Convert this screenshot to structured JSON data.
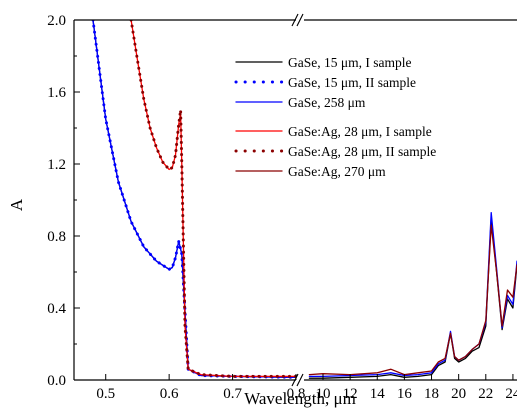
{
  "chart_data": {
    "type": "line",
    "title": "",
    "xlabel": "Wavelength, μm",
    "ylabel": "A",
    "ylim": [
      0,
      2.0
    ],
    "grid": false,
    "legend_position": "upper-right",
    "broken_x_axis": true,
    "panels": [
      {
        "xlim": [
          0.45,
          0.8
        ],
        "xticks": [
          0.5,
          0.6,
          0.7,
          0.8
        ]
      },
      {
        "xlim": [
          8.6,
          24.3
        ],
        "xticks": [
          10,
          12,
          14,
          16,
          18,
          20,
          22,
          24
        ]
      }
    ],
    "yticks": [
      "0.0",
      "0.4",
      "0.8",
      "1.2",
      "1.6",
      "2.0"
    ],
    "xtick_labels": [
      "0.5",
      "0.6",
      "0.7",
      "0.8",
      "10",
      "12",
      "14",
      "16",
      "18",
      "20",
      "22",
      "24"
    ],
    "series": [
      {
        "name": "GaSe, 15 μm, I sample",
        "color": "#000000",
        "style": "solid",
        "x": [
          0.48,
          0.5,
          0.52,
          0.54,
          0.56,
          0.58,
          0.6,
          0.605,
          0.61,
          0.615,
          0.62,
          0.63,
          0.65,
          0.7,
          0.8,
          9,
          10,
          12,
          14,
          15,
          16,
          17,
          18,
          18.5,
          19,
          19.4,
          19.7,
          20,
          20.5,
          21,
          21.5,
          22,
          22.4,
          22.8,
          23.2,
          23.6,
          24,
          24.3
        ],
        "y": [
          2.0,
          1.45,
          1.1,
          0.88,
          0.74,
          0.66,
          0.615,
          0.625,
          0.68,
          0.77,
          0.7,
          0.06,
          0.025,
          0.02,
          0.015,
          0.01,
          0.01,
          0.015,
          0.02,
          0.03,
          0.015,
          0.02,
          0.03,
          0.08,
          0.1,
          0.26,
          0.12,
          0.1,
          0.12,
          0.16,
          0.18,
          0.3,
          0.9,
          0.6,
          0.28,
          0.45,
          0.4,
          0.64
        ]
      },
      {
        "name": "GaSe, 15 μm, II sample",
        "color": "#0000ff",
        "style": "dotted",
        "x": [
          0.48,
          0.5,
          0.52,
          0.54,
          0.56,
          0.58,
          0.6,
          0.605,
          0.61,
          0.615,
          0.62,
          0.63,
          0.65,
          0.7,
          0.8
        ],
        "y": [
          2.0,
          1.45,
          1.1,
          0.88,
          0.74,
          0.66,
          0.615,
          0.625,
          0.68,
          0.77,
          0.7,
          0.06,
          0.025,
          0.02,
          0.015
        ]
      },
      {
        "name": "GaSe, 258 μm",
        "color": "#0000ff",
        "style": "solid",
        "x": [
          0.48,
          0.5,
          0.52,
          0.54,
          0.56,
          0.58,
          0.6,
          0.605,
          0.61,
          0.615,
          0.62,
          0.63,
          0.65,
          0.7,
          0.8,
          9,
          10,
          12,
          14,
          15,
          16,
          17,
          18,
          18.5,
          19,
          19.4,
          19.7,
          20,
          20.5,
          21,
          21.5,
          22,
          22.4,
          22.8,
          23.2,
          23.6,
          24,
          24.3
        ],
        "y": [
          2.0,
          1.45,
          1.1,
          0.88,
          0.74,
          0.66,
          0.615,
          0.625,
          0.68,
          0.77,
          0.7,
          0.06,
          0.025,
          0.02,
          0.015,
          0.02,
          0.02,
          0.025,
          0.03,
          0.04,
          0.025,
          0.03,
          0.04,
          0.09,
          0.11,
          0.27,
          0.13,
          0.11,
          0.13,
          0.17,
          0.2,
          0.32,
          0.93,
          0.62,
          0.29,
          0.47,
          0.42,
          0.66
        ]
      },
      {
        "name": "GaSe:Ag, 28 μm, I sample",
        "color": "#ff0000",
        "style": "solid",
        "x": [
          0.54,
          0.55,
          0.56,
          0.57,
          0.58,
          0.59,
          0.6,
          0.605,
          0.61,
          0.615,
          0.618,
          0.62,
          0.625,
          0.63,
          0.65,
          0.7,
          0.8
        ],
        "y": [
          2.0,
          1.78,
          1.56,
          1.4,
          1.29,
          1.21,
          1.17,
          1.18,
          1.25,
          1.42,
          1.48,
          1.2,
          0.3,
          0.06,
          0.03,
          0.02,
          0.02
        ]
      },
      {
        "name": "GaSe:Ag, 28 μm, II sample",
        "color": "#8b0000",
        "style": "dotted",
        "x": [
          0.54,
          0.55,
          0.56,
          0.57,
          0.58,
          0.59,
          0.6,
          0.605,
          0.61,
          0.615,
          0.618,
          0.62,
          0.625,
          0.63,
          0.65,
          0.7,
          0.8
        ],
        "y": [
          2.0,
          1.78,
          1.56,
          1.4,
          1.29,
          1.21,
          1.17,
          1.18,
          1.25,
          1.42,
          1.5,
          1.2,
          0.3,
          0.06,
          0.03,
          0.02,
          0.02
        ]
      },
      {
        "name": "GaSe:Ag, 270 μm",
        "color": "#8b0000",
        "style": "solid",
        "x": [
          9,
          10,
          12,
          14,
          15,
          16,
          17,
          18,
          18.5,
          19,
          19.4,
          19.7,
          20,
          20.5,
          21,
          21.5,
          22,
          22.4,
          22.8,
          23.2,
          23.6,
          24,
          24.3
        ],
        "y": [
          0.03,
          0.035,
          0.03,
          0.04,
          0.06,
          0.03,
          0.04,
          0.05,
          0.1,
          0.12,
          0.26,
          0.13,
          0.11,
          0.13,
          0.17,
          0.2,
          0.33,
          0.86,
          0.6,
          0.3,
          0.5,
          0.46,
          0.64
        ]
      }
    ]
  }
}
